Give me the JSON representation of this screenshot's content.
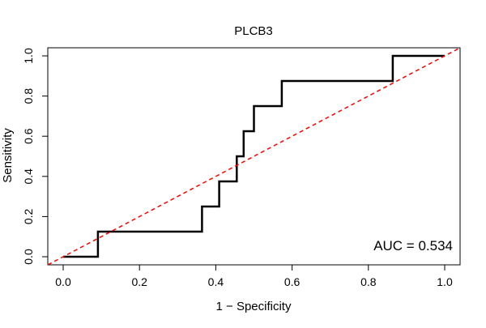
{
  "chart_data": {
    "type": "line",
    "title": "PLCB3",
    "xlabel": "1 − Specificity",
    "ylabel": "Sensitivity",
    "xlim": [
      0,
      1
    ],
    "ylim": [
      0,
      1
    ],
    "x_ticks": [
      0.0,
      0.2,
      0.4,
      0.6,
      0.8,
      1.0
    ],
    "x_tick_labels": [
      "0.0",
      "0.2",
      "0.4",
      "0.6",
      "0.8",
      "1.0"
    ],
    "y_ticks": [
      0.0,
      0.2,
      0.4,
      0.6,
      0.8,
      1.0
    ],
    "y_tick_labels": [
      "0.0",
      "0.2",
      "0.4",
      "0.6",
      "0.8",
      "1.0"
    ],
    "grid": false,
    "annotation": "AUC = 0.534",
    "series": [
      {
        "name": "ROC curve",
        "color": "#000000",
        "style": "solid",
        "x": [
          0.0,
          0.091,
          0.091,
          0.364,
          0.364,
          0.409,
          0.409,
          0.455,
          0.455,
          0.473,
          0.473,
          0.5,
          0.5,
          0.573,
          0.573,
          0.864,
          0.864,
          1.0
        ],
        "y": [
          0.0,
          0.0,
          0.125,
          0.125,
          0.25,
          0.25,
          0.375,
          0.375,
          0.5,
          0.5,
          0.625,
          0.625,
          0.75,
          0.75,
          0.875,
          0.875,
          1.0,
          1.0
        ]
      },
      {
        "name": "Chance line",
        "color": "#ff0000",
        "style": "dashed",
        "x": [
          -0.04,
          1.04
        ],
        "y": [
          -0.04,
          1.04
        ]
      }
    ]
  }
}
